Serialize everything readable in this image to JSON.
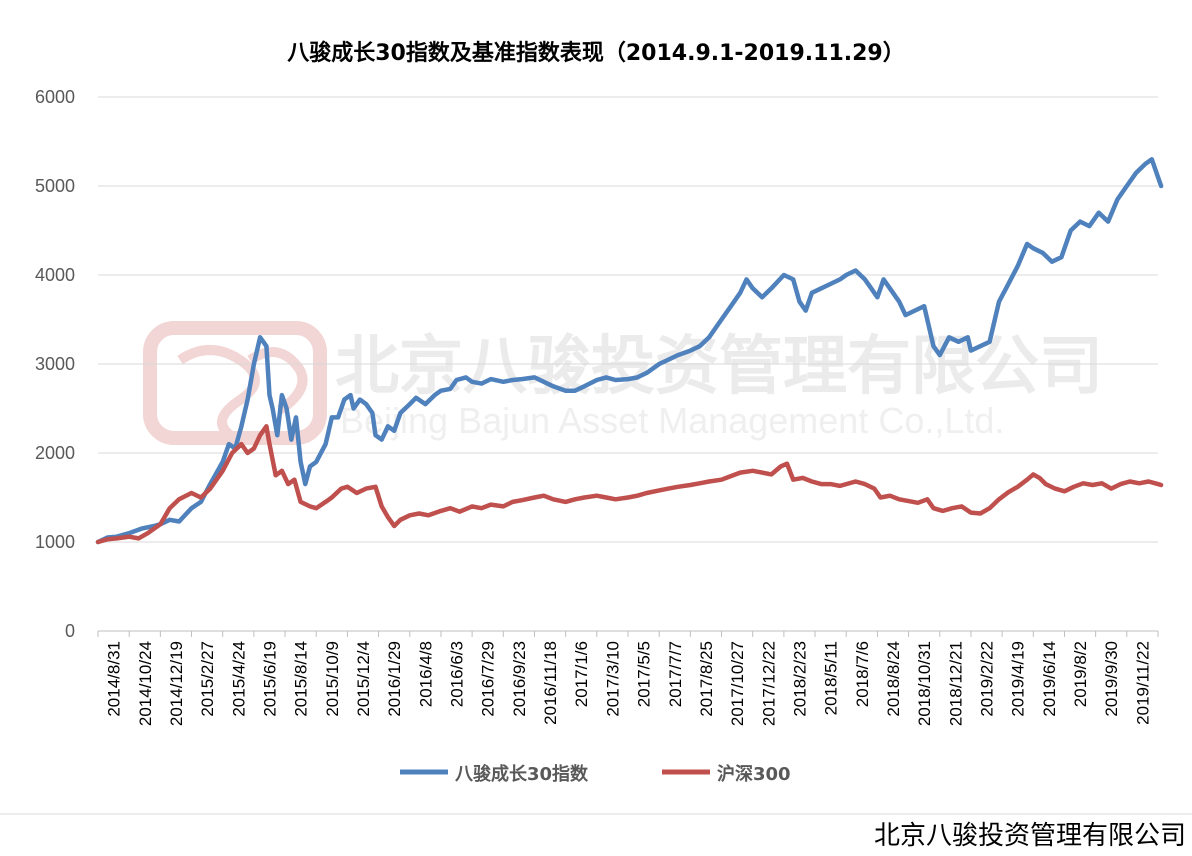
{
  "chart_data": {
    "type": "line",
    "title": "八骏成长30指数及基准指数表现（2014.9.1-2019.11.29）",
    "ylim": [
      0,
      6000
    ],
    "yticks": [
      0,
      1000,
      2000,
      3000,
      4000,
      5000,
      6000
    ],
    "grid": true,
    "legend_position": "bottom",
    "categories": [
      "2014/8/31",
      "2014/10/24",
      "2014/12/19",
      "2015/2/27",
      "2015/4/24",
      "2015/6/19",
      "2015/8/14",
      "2015/10/9",
      "2015/12/4",
      "2016/1/29",
      "2016/4/8",
      "2016/6/3",
      "2016/7/29",
      "2016/9/23",
      "2016/11/18",
      "2017/1/6",
      "2017/3/10",
      "2017/5/5",
      "2017/7/7",
      "2017/8/25",
      "2017/10/27",
      "2017/12/22",
      "2018/2/23",
      "2018/5/11",
      "2018/7/6",
      "2018/8/24",
      "2018/10/31",
      "2018/12/21",
      "2019/2/22",
      "2019/4/19",
      "2019/6/14",
      "2019/8/2",
      "2019/9/30",
      "2019/11/22"
    ],
    "series": [
      {
        "name": "八骏成长30指数",
        "color": "#4f81bd",
        "points": [
          [
            0,
            1000
          ],
          [
            0.3,
            1050
          ],
          [
            0.6,
            1060
          ],
          [
            1,
            1100
          ],
          [
            1.4,
            1150
          ],
          [
            1.8,
            1180
          ],
          [
            2,
            1200
          ],
          [
            2.3,
            1250
          ],
          [
            2.6,
            1230
          ],
          [
            3,
            1380
          ],
          [
            3.3,
            1450
          ],
          [
            3.6,
            1650
          ],
          [
            4,
            1900
          ],
          [
            4.2,
            2100
          ],
          [
            4.4,
            2050
          ],
          [
            4.6,
            2300
          ],
          [
            4.8,
            2600
          ],
          [
            5,
            3000
          ],
          [
            5.2,
            3300
          ],
          [
            5.4,
            3200
          ],
          [
            5.5,
            2650
          ],
          [
            5.6,
            2500
          ],
          [
            5.75,
            2200
          ],
          [
            5.9,
            2650
          ],
          [
            6.05,
            2500
          ],
          [
            6.2,
            2150
          ],
          [
            6.35,
            2400
          ],
          [
            6.5,
            1900
          ],
          [
            6.65,
            1650
          ],
          [
            6.8,
            1850
          ],
          [
            7,
            1900
          ],
          [
            7.3,
            2100
          ],
          [
            7.5,
            2400
          ],
          [
            7.7,
            2400
          ],
          [
            7.9,
            2600
          ],
          [
            8.1,
            2650
          ],
          [
            8.2,
            2500
          ],
          [
            8.4,
            2600
          ],
          [
            8.6,
            2550
          ],
          [
            8.8,
            2450
          ],
          [
            8.9,
            2200
          ],
          [
            9.1,
            2150
          ],
          [
            9.3,
            2300
          ],
          [
            9.5,
            2250
          ],
          [
            9.7,
            2450
          ],
          [
            10,
            2550
          ],
          [
            10.2,
            2620
          ],
          [
            10.5,
            2550
          ],
          [
            10.8,
            2650
          ],
          [
            11,
            2700
          ],
          [
            11.3,
            2720
          ],
          [
            11.5,
            2820
          ],
          [
            11.8,
            2850
          ],
          [
            12,
            2800
          ],
          [
            12.3,
            2780
          ],
          [
            12.6,
            2830
          ],
          [
            13,
            2800
          ],
          [
            13.3,
            2820
          ],
          [
            13.6,
            2830
          ],
          [
            14,
            2850
          ],
          [
            14.3,
            2800
          ],
          [
            14.6,
            2750
          ],
          [
            15,
            2700
          ],
          [
            15.3,
            2700
          ],
          [
            15.6,
            2750
          ],
          [
            16,
            2820
          ],
          [
            16.3,
            2850
          ],
          [
            16.6,
            2820
          ],
          [
            17,
            2830
          ],
          [
            17.3,
            2850
          ],
          [
            17.6,
            2900
          ],
          [
            18,
            3000
          ],
          [
            18.3,
            3050
          ],
          [
            18.6,
            3100
          ],
          [
            19,
            3150
          ],
          [
            19.3,
            3200
          ],
          [
            19.6,
            3300
          ],
          [
            20,
            3500
          ],
          [
            20.3,
            3650
          ],
          [
            20.6,
            3800
          ],
          [
            20.8,
            3950
          ],
          [
            21,
            3850
          ],
          [
            21.3,
            3750
          ],
          [
            21.6,
            3850
          ],
          [
            22,
            4000
          ],
          [
            22.3,
            3950
          ],
          [
            22.5,
            3700
          ],
          [
            22.7,
            3600
          ],
          [
            22.9,
            3800
          ],
          [
            23.2,
            3850
          ],
          [
            23.5,
            3900
          ],
          [
            23.8,
            3950
          ],
          [
            24,
            4000
          ],
          [
            24.3,
            4050
          ],
          [
            24.6,
            3950
          ],
          [
            24.8,
            3850
          ],
          [
            25,
            3750
          ],
          [
            25.2,
            3950
          ],
          [
            25.5,
            3800
          ],
          [
            25.7,
            3700
          ],
          [
            25.9,
            3550
          ],
          [
            26.2,
            3600
          ],
          [
            26.5,
            3650
          ],
          [
            26.8,
            3200
          ],
          [
            27,
            3100
          ],
          [
            27.3,
            3300
          ],
          [
            27.6,
            3250
          ],
          [
            27.9,
            3300
          ],
          [
            28,
            3150
          ],
          [
            28.3,
            3200
          ],
          [
            28.6,
            3250
          ],
          [
            28.9,
            3700
          ],
          [
            29.2,
            3900
          ],
          [
            29.5,
            4100
          ],
          [
            29.8,
            4350
          ],
          [
            30,
            4300
          ],
          [
            30.3,
            4250
          ],
          [
            30.6,
            4150
          ],
          [
            30.9,
            4200
          ],
          [
            31.2,
            4500
          ],
          [
            31.5,
            4600
          ],
          [
            31.8,
            4550
          ],
          [
            32.1,
            4700
          ],
          [
            32.4,
            4600
          ],
          [
            32.7,
            4850
          ],
          [
            33,
            5000
          ],
          [
            33.3,
            5150
          ],
          [
            33.6,
            5250
          ],
          [
            33.8,
            5300
          ],
          [
            34,
            5100
          ],
          [
            34.1,
            5000
          ]
        ]
      },
      {
        "name": "沪深300",
        "color": "#c0504d",
        "points": [
          [
            0,
            1000
          ],
          [
            0.3,
            1030
          ],
          [
            0.6,
            1040
          ],
          [
            1,
            1060
          ],
          [
            1.3,
            1040
          ],
          [
            1.6,
            1100
          ],
          [
            2,
            1200
          ],
          [
            2.3,
            1380
          ],
          [
            2.6,
            1480
          ],
          [
            3,
            1550
          ],
          [
            3.3,
            1500
          ],
          [
            3.6,
            1600
          ],
          [
            4,
            1800
          ],
          [
            4.3,
            2000
          ],
          [
            4.6,
            2100
          ],
          [
            4.8,
            2000
          ],
          [
            5,
            2050
          ],
          [
            5.2,
            2200
          ],
          [
            5.4,
            2300
          ],
          [
            5.5,
            2100
          ],
          [
            5.7,
            1750
          ],
          [
            5.9,
            1800
          ],
          [
            6.1,
            1650
          ],
          [
            6.3,
            1700
          ],
          [
            6.5,
            1450
          ],
          [
            6.8,
            1400
          ],
          [
            7,
            1380
          ],
          [
            7.3,
            1450
          ],
          [
            7.5,
            1500
          ],
          [
            7.8,
            1600
          ],
          [
            8,
            1620
          ],
          [
            8.3,
            1550
          ],
          [
            8.6,
            1600
          ],
          [
            8.9,
            1620
          ],
          [
            9.1,
            1400
          ],
          [
            9.3,
            1280
          ],
          [
            9.5,
            1180
          ],
          [
            9.7,
            1250
          ],
          [
            10,
            1300
          ],
          [
            10.3,
            1320
          ],
          [
            10.6,
            1300
          ],
          [
            11,
            1350
          ],
          [
            11.3,
            1380
          ],
          [
            11.6,
            1340
          ],
          [
            12,
            1400
          ],
          [
            12.3,
            1380
          ],
          [
            12.6,
            1420
          ],
          [
            13,
            1400
          ],
          [
            13.3,
            1450
          ],
          [
            13.6,
            1470
          ],
          [
            14,
            1500
          ],
          [
            14.3,
            1520
          ],
          [
            14.6,
            1480
          ],
          [
            15,
            1450
          ],
          [
            15.3,
            1480
          ],
          [
            15.6,
            1500
          ],
          [
            16,
            1520
          ],
          [
            16.3,
            1500
          ],
          [
            16.6,
            1480
          ],
          [
            17,
            1500
          ],
          [
            17.3,
            1520
          ],
          [
            17.6,
            1550
          ],
          [
            18,
            1580
          ],
          [
            18.3,
            1600
          ],
          [
            18.6,
            1620
          ],
          [
            19,
            1640
          ],
          [
            19.3,
            1660
          ],
          [
            19.6,
            1680
          ],
          [
            20,
            1700
          ],
          [
            20.3,
            1740
          ],
          [
            20.6,
            1780
          ],
          [
            21,
            1800
          ],
          [
            21.3,
            1780
          ],
          [
            21.6,
            1760
          ],
          [
            21.9,
            1850
          ],
          [
            22.1,
            1880
          ],
          [
            22.3,
            1700
          ],
          [
            22.6,
            1720
          ],
          [
            22.9,
            1680
          ],
          [
            23.2,
            1650
          ],
          [
            23.5,
            1650
          ],
          [
            23.8,
            1630
          ],
          [
            24,
            1650
          ],
          [
            24.3,
            1680
          ],
          [
            24.6,
            1650
          ],
          [
            24.9,
            1600
          ],
          [
            25.1,
            1500
          ],
          [
            25.4,
            1520
          ],
          [
            25.7,
            1480
          ],
          [
            26,
            1460
          ],
          [
            26.3,
            1440
          ],
          [
            26.6,
            1480
          ],
          [
            26.8,
            1380
          ],
          [
            27.1,
            1350
          ],
          [
            27.4,
            1380
          ],
          [
            27.7,
            1400
          ],
          [
            28,
            1330
          ],
          [
            28.3,
            1320
          ],
          [
            28.6,
            1380
          ],
          [
            28.9,
            1480
          ],
          [
            29.2,
            1560
          ],
          [
            29.5,
            1620
          ],
          [
            29.8,
            1700
          ],
          [
            30,
            1760
          ],
          [
            30.2,
            1720
          ],
          [
            30.4,
            1650
          ],
          [
            30.7,
            1600
          ],
          [
            31,
            1570
          ],
          [
            31.3,
            1620
          ],
          [
            31.6,
            1660
          ],
          [
            31.9,
            1640
          ],
          [
            32.2,
            1660
          ],
          [
            32.5,
            1600
          ],
          [
            32.8,
            1650
          ],
          [
            33.1,
            1680
          ],
          [
            33.4,
            1660
          ],
          [
            33.7,
            1680
          ],
          [
            34,
            1650
          ],
          [
            34.1,
            1640
          ]
        ]
      }
    ]
  },
  "watermark": {
    "company_cn": "北京八骏投资管理有限公司",
    "company_en": "Beijing Bajun Asset Management Co.,Ltd."
  },
  "footer": {
    "company": "北京八骏投资管理有限公司"
  }
}
